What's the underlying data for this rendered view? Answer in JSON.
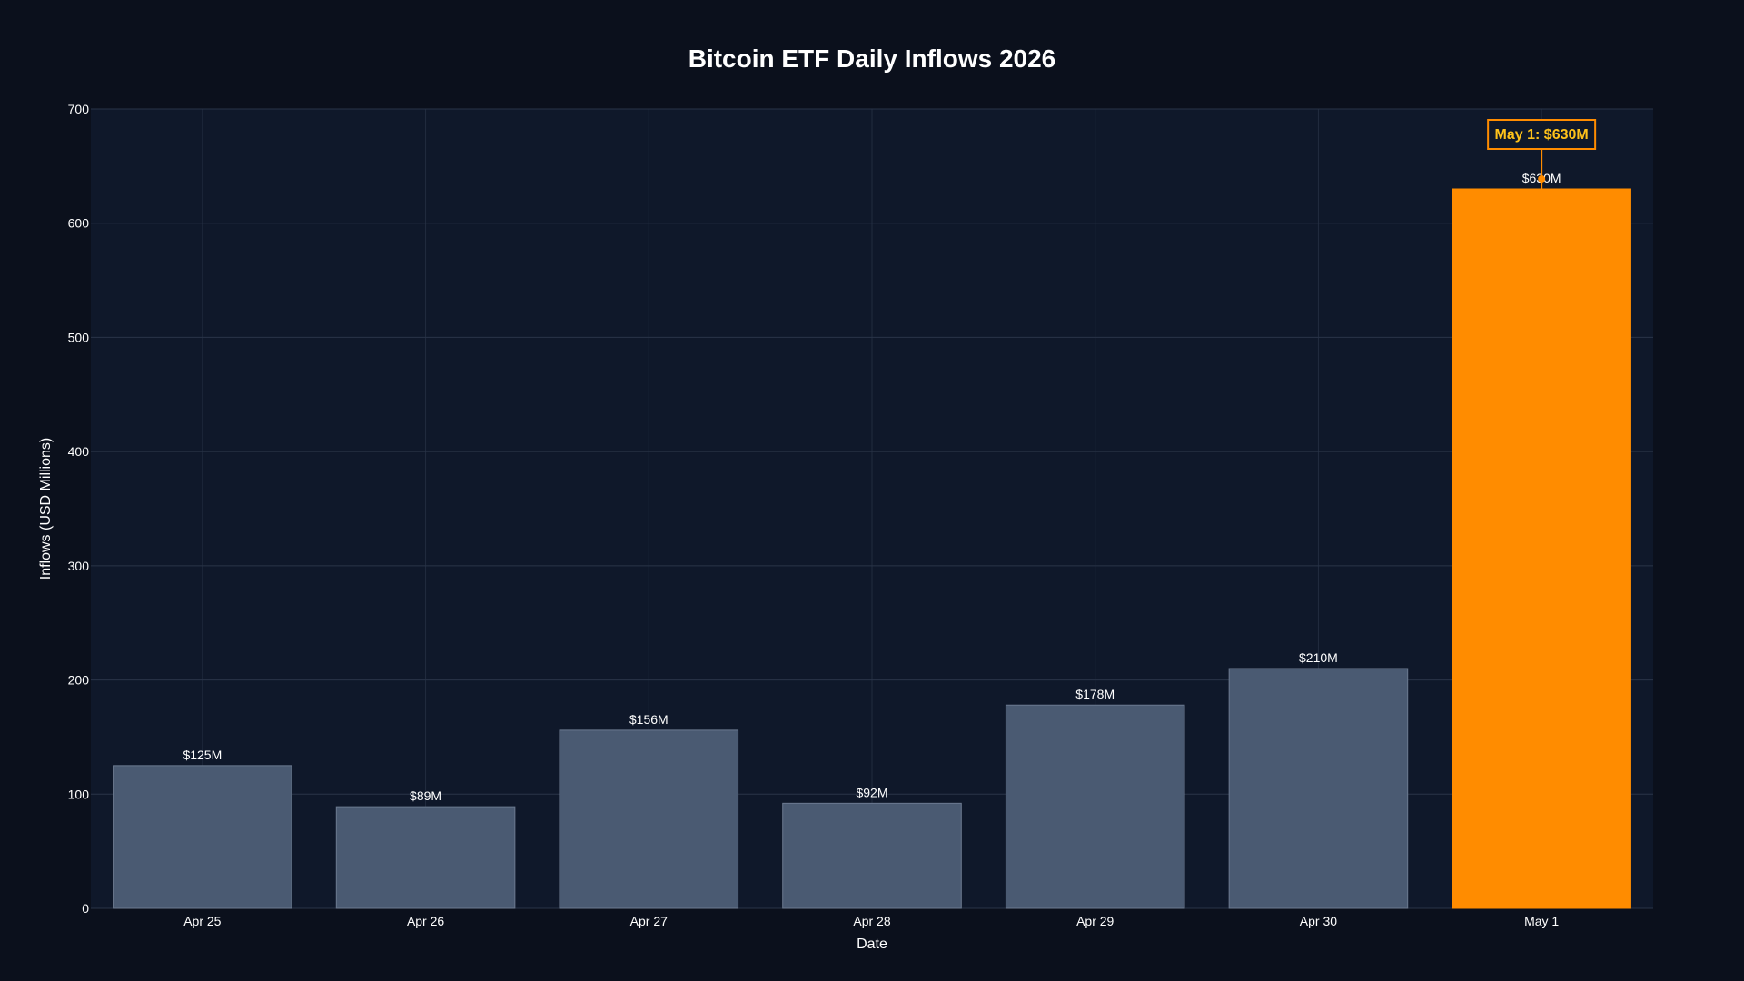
{
  "chart_data": {
    "type": "bar",
    "title": "Bitcoin ETF Daily Inflows 2026",
    "xlabel": "Date",
    "ylabel": "Inflows (USD Millions)",
    "categories": [
      "Apr 25",
      "Apr 26",
      "Apr 27",
      "Apr 28",
      "Apr 29",
      "Apr 30",
      "May 1"
    ],
    "values": [
      125,
      89,
      156,
      92,
      178,
      210,
      630
    ],
    "data_labels": [
      "$125M",
      "$89M",
      "$156M",
      "$92M",
      "$178M",
      "$210M",
      "$630M"
    ],
    "ylim": [
      0,
      700
    ],
    "yticks": [
      0,
      100,
      200,
      300,
      400,
      500,
      600,
      700
    ],
    "grid": true,
    "legend": "none",
    "highlight": {
      "category": "May 1",
      "value": 630,
      "annotation": "May 1: $630M"
    },
    "colors": {
      "page_background": "#0b101c",
      "plot_background": "#0f182a",
      "bar": "#4a5a72",
      "bar_edge": "#6c7a90",
      "highlight_bar": "#ff8c00",
      "annotation_text": "#ffc21a",
      "annotation_border": "#ff8c00",
      "grid": "#2a3448",
      "text": "#ffffff"
    }
  }
}
